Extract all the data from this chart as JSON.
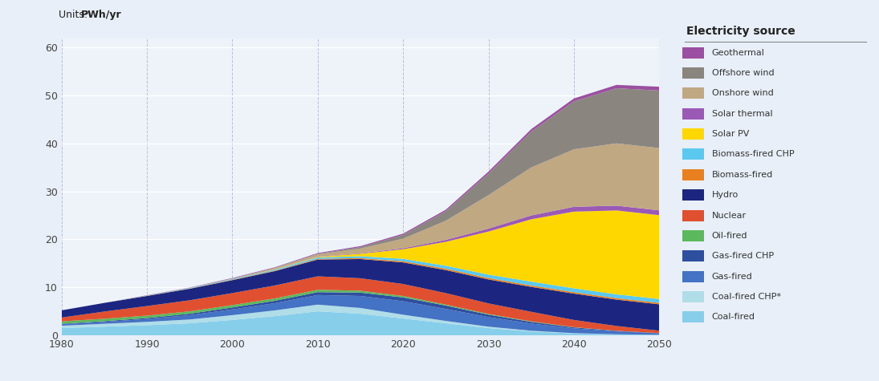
{
  "years": [
    1980,
    1985,
    1990,
    1995,
    2000,
    2005,
    2010,
    2015,
    2020,
    2025,
    2030,
    2035,
    2040,
    2045,
    2050
  ],
  "sources": [
    "Coal-fired",
    "Coal-fired CHP*",
    "Gas-fired",
    "Gas-fired CHP",
    "Oil-fired",
    "Nuclear",
    "Hydro",
    "Biomass-fired",
    "Biomass-fired CHP",
    "Solar PV",
    "Solar thermal",
    "Onshore wind",
    "Offshore wind",
    "Geothermal"
  ],
  "colors": [
    "#87CEEB",
    "#B0DDE8",
    "#4472C4",
    "#2E4FA0",
    "#5CB85C",
    "#E05030",
    "#1C2680",
    "#E88020",
    "#5BC8F0",
    "#FFD700",
    "#9B59B6",
    "#C0A882",
    "#8B8580",
    "#9B4FA0"
  ],
  "data": {
    "Coal-fired": [
      1.5,
      1.8,
      2.1,
      2.5,
      3.2,
      4.0,
      5.0,
      4.5,
      3.5,
      2.5,
      1.5,
      0.8,
      0.4,
      0.2,
      0.1
    ],
    "Coal-fired CHP*": [
      0.5,
      0.6,
      0.7,
      0.8,
      1.0,
      1.2,
      1.4,
      1.2,
      0.8,
      0.5,
      0.3,
      0.15,
      0.05,
      0.02,
      0.0
    ],
    "Gas-fired": [
      0.3,
      0.4,
      0.6,
      0.9,
      1.2,
      1.5,
      2.0,
      2.5,
      2.8,
      2.5,
      2.0,
      1.5,
      1.0,
      0.6,
      0.3
    ],
    "Gas-fired CHP": [
      0.1,
      0.15,
      0.2,
      0.3,
      0.4,
      0.5,
      0.6,
      0.7,
      0.8,
      0.7,
      0.5,
      0.35,
      0.2,
      0.1,
      0.05
    ],
    "Oil-fired": [
      0.5,
      0.5,
      0.5,
      0.5,
      0.5,
      0.5,
      0.5,
      0.4,
      0.3,
      0.2,
      0.15,
      0.1,
      0.05,
      0.02,
      0.01
    ],
    "Nuclear": [
      0.8,
      1.5,
      2.0,
      2.3,
      2.5,
      2.7,
      2.8,
      2.6,
      2.5,
      2.4,
      2.2,
      2.0,
      1.5,
      1.0,
      0.5
    ],
    "Hydro": [
      1.5,
      1.8,
      2.1,
      2.4,
      2.7,
      3.0,
      3.5,
      4.0,
      4.5,
      4.8,
      5.0,
      5.2,
      5.5,
      5.5,
      5.5
    ],
    "Biomass-fired": [
      0.0,
      0.0,
      0.05,
      0.05,
      0.1,
      0.1,
      0.15,
      0.2,
      0.25,
      0.3,
      0.3,
      0.3,
      0.3,
      0.3,
      0.3
    ],
    "Biomass-fired CHP": [
      0.0,
      0.0,
      0.05,
      0.1,
      0.15,
      0.2,
      0.3,
      0.4,
      0.5,
      0.6,
      0.7,
      0.8,
      0.8,
      0.8,
      0.8
    ],
    "Solar PV": [
      0.0,
      0.0,
      0.0,
      0.0,
      0.0,
      0.05,
      0.1,
      0.5,
      2.0,
      5.0,
      9.0,
      13.0,
      16.0,
      17.5,
      17.5
    ],
    "Solar thermal": [
      0.0,
      0.0,
      0.0,
      0.0,
      0.0,
      0.0,
      0.05,
      0.1,
      0.2,
      0.4,
      0.6,
      0.8,
      1.0,
      1.0,
      1.0
    ],
    "Onshore wind": [
      0.0,
      0.0,
      0.0,
      0.05,
      0.1,
      0.3,
      0.5,
      1.0,
      2.0,
      4.0,
      7.0,
      10.0,
      12.0,
      13.0,
      13.0
    ],
    "Offshore wind": [
      0.0,
      0.0,
      0.0,
      0.0,
      0.0,
      0.05,
      0.1,
      0.3,
      0.8,
      2.0,
      4.5,
      7.5,
      10.0,
      11.5,
      12.0
    ],
    "Geothermal": [
      0.0,
      0.0,
      0.05,
      0.05,
      0.1,
      0.1,
      0.15,
      0.2,
      0.25,
      0.3,
      0.4,
      0.5,
      0.6,
      0.7,
      0.8
    ]
  },
  "units_label": "Units: ",
  "units_bold": "PWh/yr",
  "legend_title": "Electricity source",
  "ylim": [
    0,
    62
  ],
  "yticks": [
    0,
    10,
    20,
    30,
    40,
    50,
    60
  ],
  "xticks": [
    1980,
    1990,
    2000,
    2010,
    2020,
    2030,
    2040,
    2050
  ],
  "background_color": "#E8EFF8",
  "plot_bg_color": "#EEF3FA"
}
